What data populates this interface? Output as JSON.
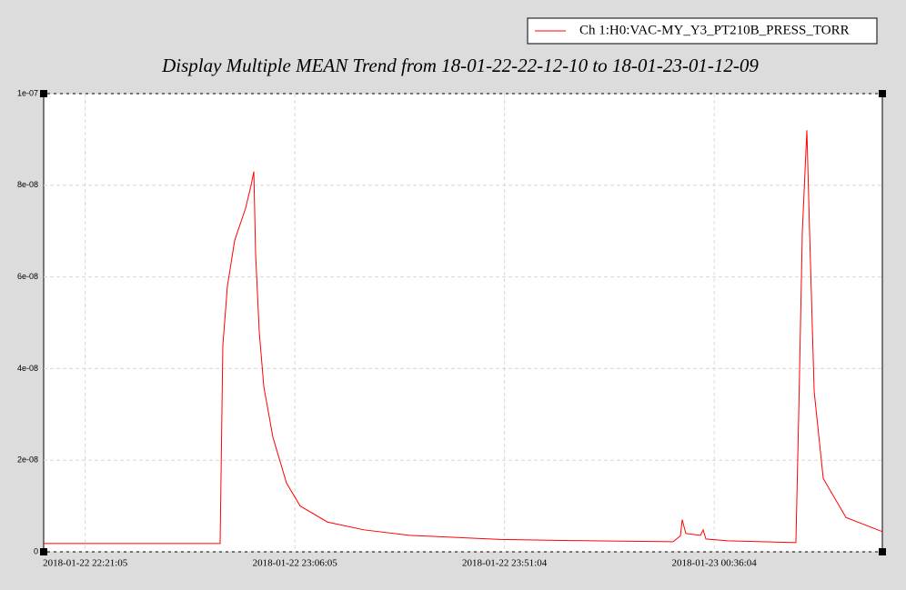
{
  "chart_data": {
    "type": "line",
    "title": "Display Multiple MEAN Trend from 18-01-22-22-12-10 to 18-01-23-01-12-09",
    "x": [
      "2018-01-22 22:12:10",
      "2018-01-22 22:50:02",
      "2018-01-22 22:50:37",
      "2018-01-22 22:51:36",
      "2018-01-22 22:53:10",
      "2018-01-22 22:55:30",
      "2018-01-22 22:56:41",
      "2018-01-22 22:57:16",
      "2018-01-22 22:57:39",
      "2018-01-22 22:58:26",
      "2018-01-22 22:59:25",
      "2018-01-22 23:01:22",
      "2018-01-22 23:04:17",
      "2018-01-22 23:07:13",
      "2018-01-22 23:13:04",
      "2018-01-22 23:20:53",
      "2018-01-22 23:30:39",
      "2018-01-22 23:50:10",
      "2018-01-23 00:09:41",
      "2018-01-23 00:27:15",
      "2018-01-23 00:28:49",
      "2018-01-23 00:29:12",
      "2018-01-23 00:29:59",
      "2018-01-23 00:33:07",
      "2018-01-23 00:33:42",
      "2018-01-23 00:34:17",
      "2018-01-23 00:38:58",
      "2018-01-23 00:53:36",
      "2018-01-23 00:54:12",
      "2018-01-23 00:54:59",
      "2018-01-23 00:55:57",
      "2018-01-23 00:56:32",
      "2018-01-23 00:57:31",
      "2018-01-23 00:59:28",
      "2018-01-23 01:04:21",
      "2018-01-23 01:12:09"
    ],
    "series": [
      {
        "name": "Ch 1:H0:VAC-MY_Y3_PT210B_PRESS_TORR",
        "color": "#ff0000",
        "values": [
          1.8e-09,
          1.8e-09,
          4.5e-08,
          5.8e-08,
          6.8e-08,
          7.5e-08,
          8e-08,
          8.3e-08,
          6.5e-08,
          4.8e-08,
          3.6e-08,
          2.5e-08,
          1.5e-08,
          1e-08,
          6.5e-09,
          4.8e-09,
          3.6e-09,
          2.7e-09,
          2.4e-09,
          2.2e-09,
          3.5e-09,
          7e-09,
          4e-09,
          3.6e-09,
          4.8e-09,
          2.8e-09,
          2.4e-09,
          2e-09,
          3e-08,
          7e-08,
          9.2e-08,
          7e-08,
          3.5e-08,
          1.6e-08,
          7.5e-09,
          4.4e-09
        ]
      }
    ],
    "xlim": [
      "2018-01-22 22:12:10",
      "2018-01-23 01:12:09"
    ],
    "xticks": [
      "2018-01-22 22:21:05",
      "2018-01-22 23:06:05",
      "2018-01-22 23:51:04",
      "2018-01-23 00:36:04"
    ],
    "ylim": [
      0,
      1e-07
    ],
    "yticks": [
      0,
      {
        "value": 2e-08,
        "label": "2e-08"
      },
      {
        "value": 4e-08,
        "label": "4e-08"
      },
      {
        "value": 6e-08,
        "label": "6e-08"
      },
      {
        "value": 8e-08,
        "label": "8e-08"
      },
      {
        "value": 1e-07,
        "label": "1e-07"
      }
    ],
    "grid": true,
    "legend": "top-right"
  }
}
